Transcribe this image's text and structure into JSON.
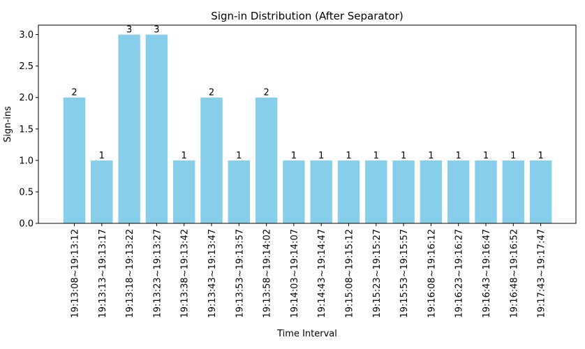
{
  "chart_data": {
    "type": "bar",
    "title": "Sign-in Distribution (After Separator)",
    "xlabel": "Time Interval",
    "ylabel": "Sign-ins",
    "ylim": [
      0,
      3.15
    ],
    "yticks": [
      "0.0",
      "0.5",
      "1.0",
      "1.5",
      "2.0",
      "2.5",
      "3.0"
    ],
    "grid": false,
    "bar_color": "#87ceeb",
    "categories": [
      "19:13:08~19:13:12",
      "19:13:13~19:13:17",
      "19:13:18~19:13:22",
      "19:13:23~19:13:27",
      "19:13:38~19:13:42",
      "19:13:43~19:13:47",
      "19:13:53~19:13:57",
      "19:13:58~19:14:02",
      "19:14:03~19:14:07",
      "19:14:43~19:14:47",
      "19:15:08~19:15:12",
      "19:15:23~19:15:27",
      "19:15:53~19:15:57",
      "19:16:08~19:16:12",
      "19:16:23~19:16:27",
      "19:16:43~19:16:47",
      "19:16:48~19:16:52",
      "19:17:43~19:17:47"
    ],
    "values": [
      2,
      1,
      3,
      3,
      1,
      2,
      1,
      2,
      1,
      1,
      1,
      1,
      1,
      1,
      1,
      1,
      1,
      1
    ]
  }
}
